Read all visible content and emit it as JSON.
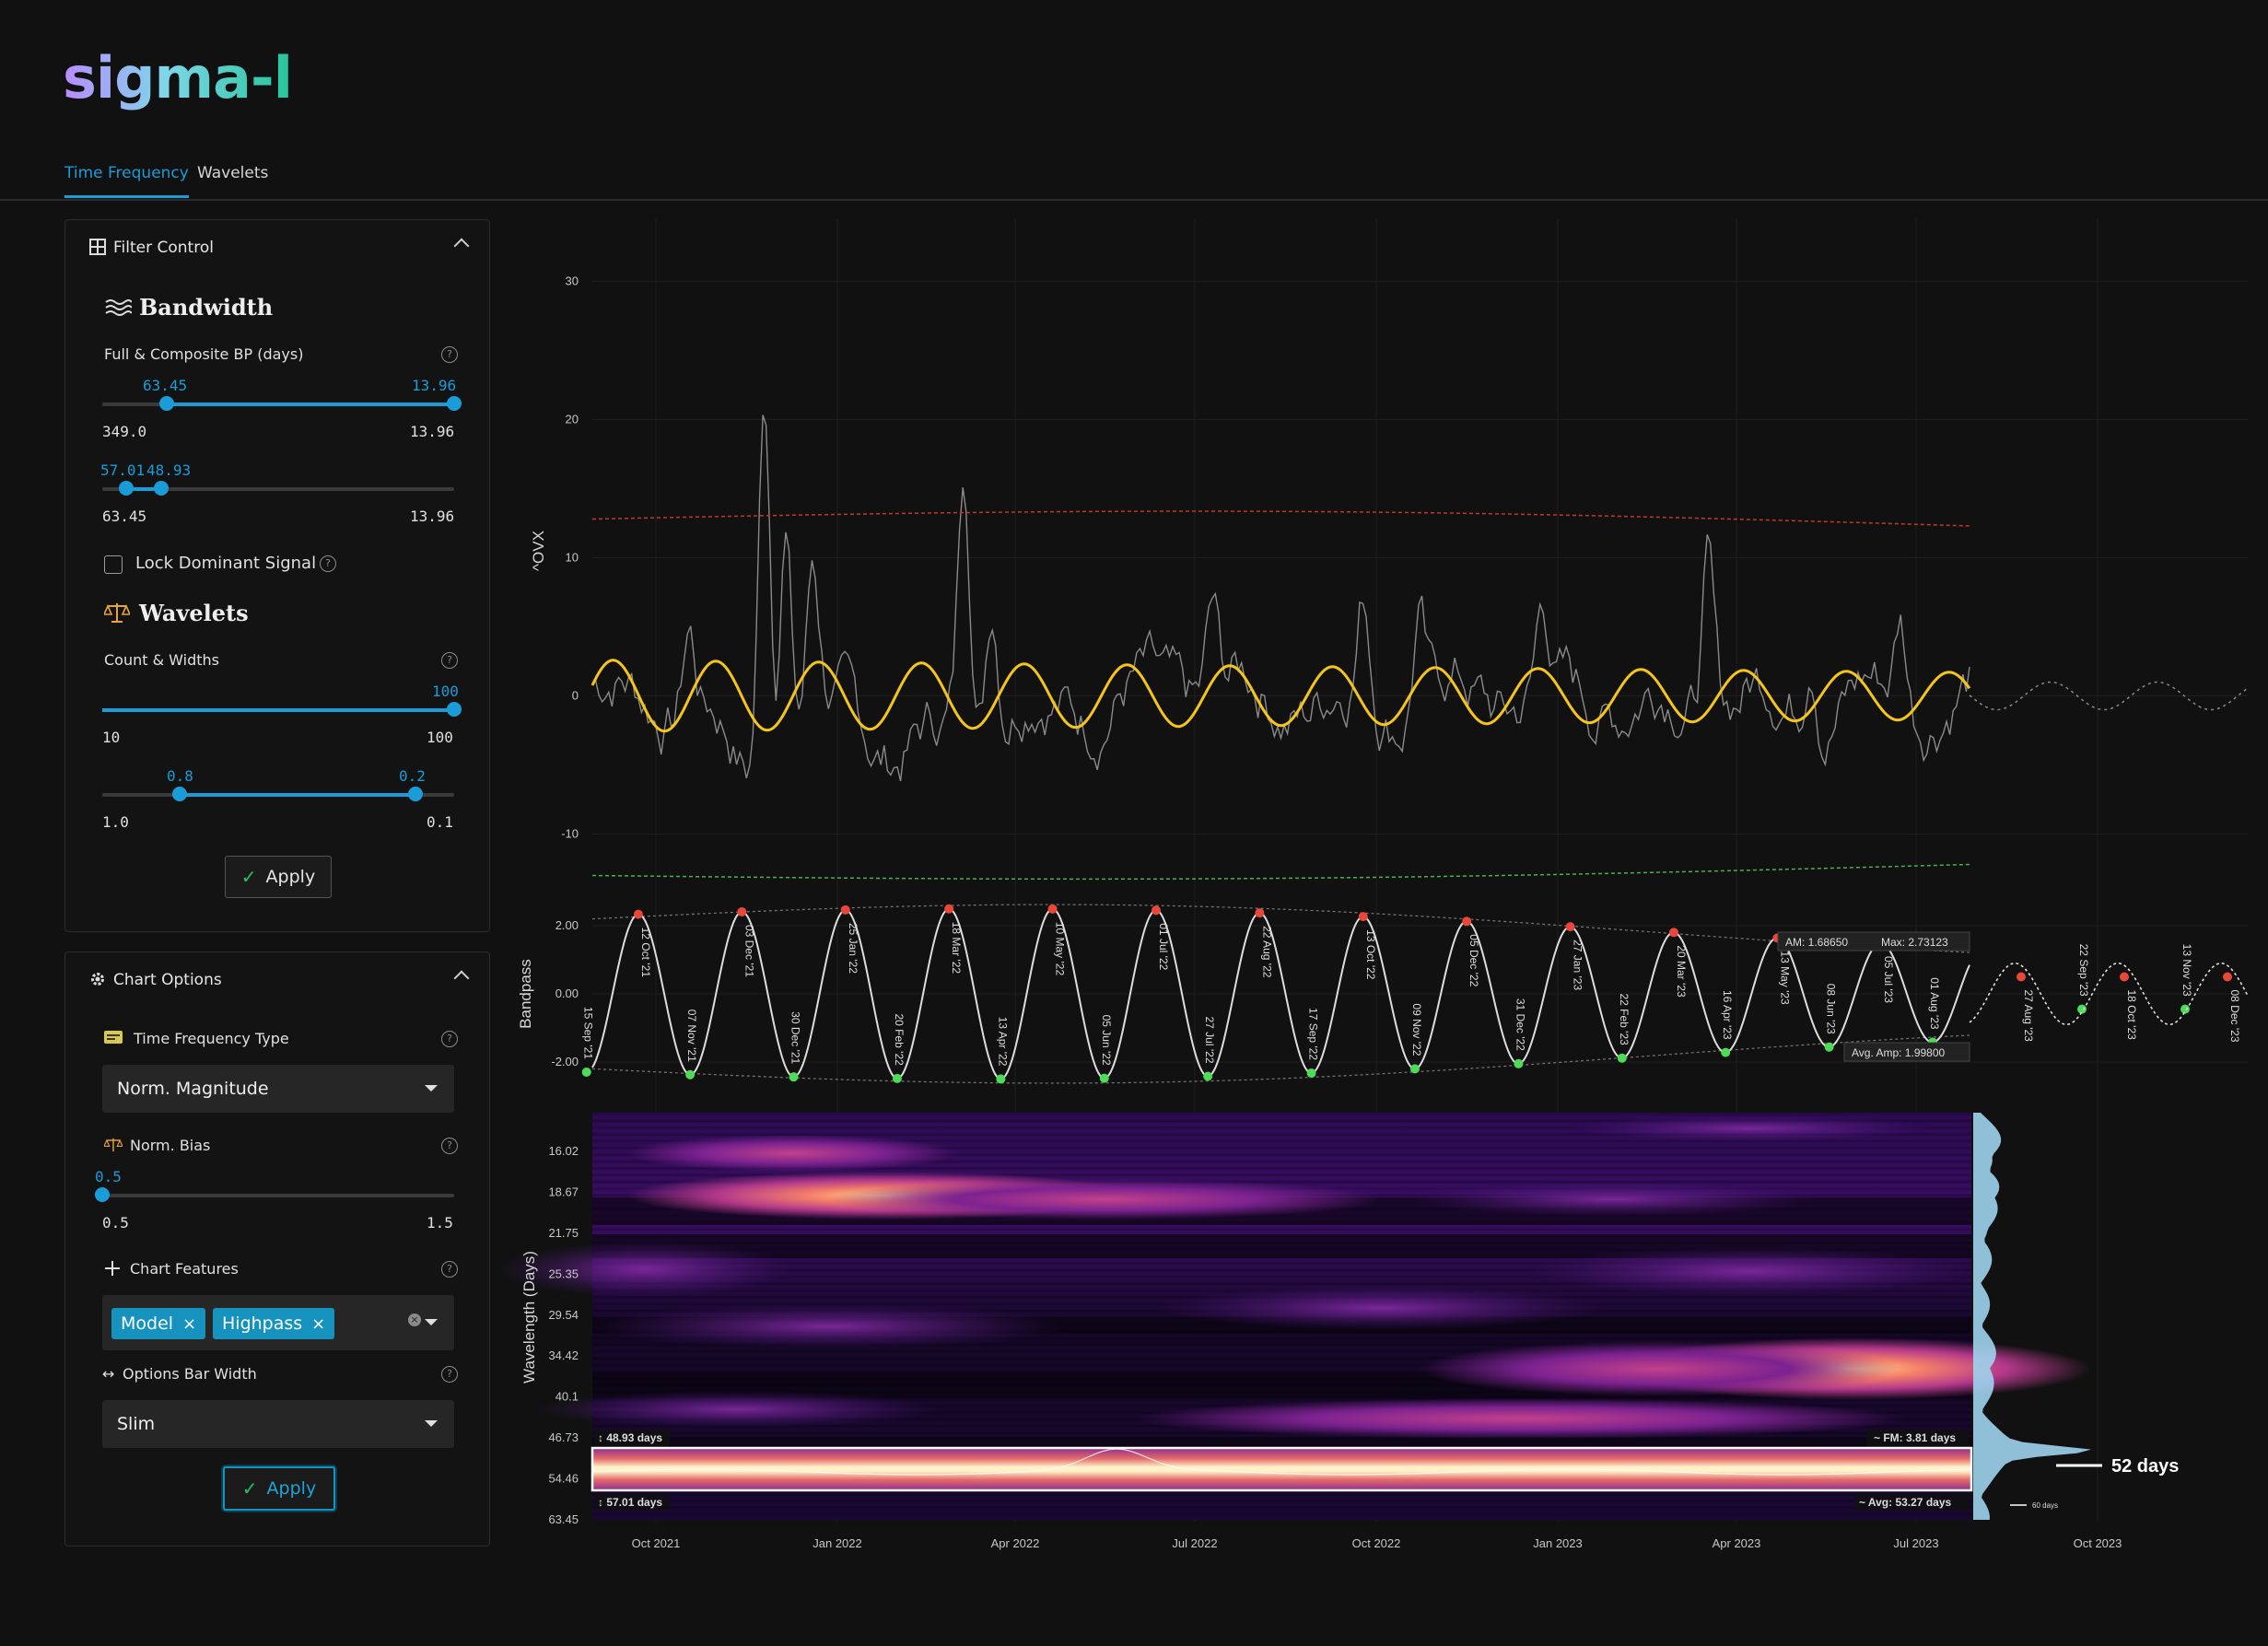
{
  "app": {
    "logo": "sigma-l"
  },
  "tabs": [
    {
      "label": "Time Frequency",
      "active": true
    },
    {
      "label": "Wavelets",
      "active": false
    }
  ],
  "filter_control": {
    "title": "Filter Control",
    "bandwidth": {
      "title": "Bandwidth",
      "full_composite_label": "Full & Composite BP (days)",
      "slider1": {
        "low": "63.45",
        "high": "13.96",
        "min": "349.0",
        "max": "13.96"
      },
      "slider2": {
        "low": "57.01",
        "high": "48.93",
        "min": "63.45",
        "max": "13.96"
      },
      "lock_label": "Lock Dominant Signal",
      "lock_checked": false
    },
    "wavelets": {
      "title": "Wavelets",
      "count_label": "Count & Widths",
      "slider1": {
        "value": "100",
        "min": "10",
        "max": "100"
      },
      "slider2": {
        "low": "0.8",
        "high": "0.2",
        "min": "1.0",
        "max": "0.1"
      }
    },
    "apply_label": "Apply"
  },
  "chart_options": {
    "title": "Chart Options",
    "tf_type": {
      "label": "Time Frequency Type",
      "value": "Norm. Magnitude"
    },
    "norm_bias": {
      "label": "Norm. Bias",
      "value": "0.5",
      "min": "0.5",
      "max": "1.5"
    },
    "features": {
      "label": "Chart Features",
      "chips": [
        "Model",
        "Highpass"
      ]
    },
    "bar_width": {
      "label": "Options Bar Width",
      "value": "Slim"
    },
    "apply_label": "Apply"
  },
  "chart_data": [
    {
      "type": "line",
      "ylabel": "^OVX",
      "yticks": [
        30,
        20,
        10,
        0,
        -10
      ],
      "ylim": [
        -13.5,
        34.5
      ],
      "series": [
        {
          "key": "price",
          "color": "#8a8a8a"
        },
        {
          "key": "composite",
          "color": "#f5c518"
        },
        {
          "key": "projection",
          "color": "#8a8a8a"
        },
        {
          "key": "upper_band",
          "color": "#c0392b"
        },
        {
          "key": "lower_band",
          "color": "#4caf50"
        }
      ]
    },
    {
      "type": "line",
      "ylabel": "Bandpass",
      "yticks": [
        "2.00",
        "0.00",
        "-2.00"
      ],
      "ylim": [
        -3.0,
        3.0
      ],
      "peak_labels": [
        "12 Oct '21",
        "03 Dec '21",
        "25 Jan '22",
        "18 Mar '22",
        "10 May '22",
        "01 Jul '22",
        "22 Aug '22",
        "13 Oct '22",
        "05 Dec '22",
        "27 Jan '23",
        "20 Mar '23",
        "13 May '23",
        "05 Jul '23",
        "27 Aug '23",
        "18 Oct '23",
        "08 Dec '23"
      ],
      "trough_labels": [
        "15 Sep '21",
        "07 Nov '21",
        "30 Dec '21",
        "20 Feb '22",
        "13 Apr '22",
        "05 Jun '22",
        "27 Jul '22",
        "17 Sep '22",
        "09 Nov '22",
        "31 Dec '22",
        "22 Feb '23",
        "16 Apr '23",
        "08 Jun '23",
        "01 Aug '23",
        "22 Sep '23",
        "13 Nov '23"
      ],
      "annotations": {
        "am": "AM: 1.68650",
        "max": "Max: 2.73123",
        "avg_amp": "Avg. Amp: 1.99800"
      }
    },
    {
      "type": "heatmap",
      "ylabel": "Wavelength (Days)",
      "yticks": [
        "16.02",
        "18.67",
        "21.75",
        "25.35",
        "29.54",
        "34.42",
        "40.1",
        "46.73",
        "54.46",
        "63.45"
      ],
      "xticks": [
        "Oct 2021",
        "Jan 2022",
        "Apr 2022",
        "Jul 2022",
        "Oct 2022",
        "Jan 2023",
        "Apr 2023",
        "Jul 2023",
        "Oct 2023"
      ],
      "annotations": {
        "upper": "48.93 days",
        "lower": "57.01 days",
        "fm": "FM: 3.81 days",
        "avg": "Avg: 53.27 days",
        "dominant": "52 days",
        "marker": "60 days"
      }
    }
  ]
}
